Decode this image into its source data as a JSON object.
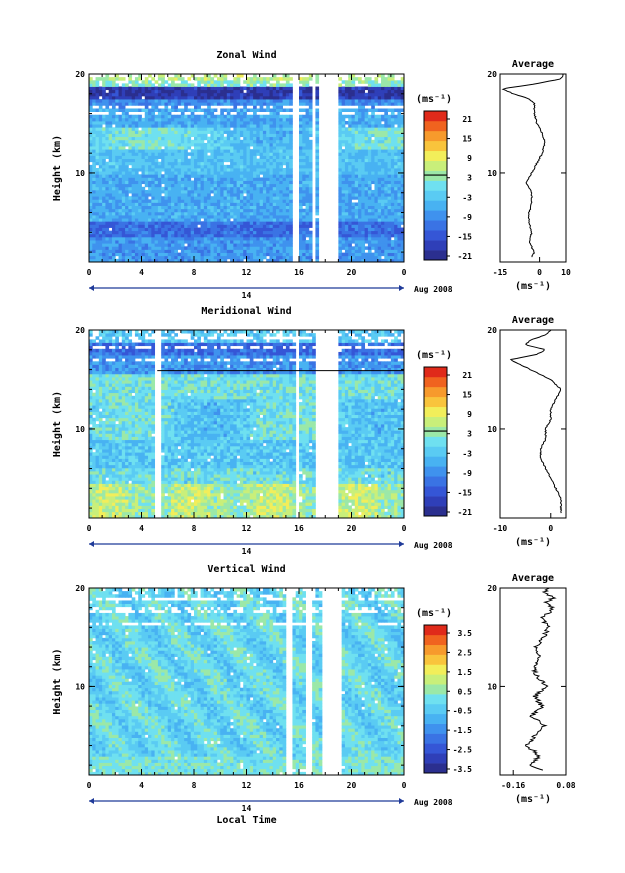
{
  "figure": {
    "xlabel": "Local Time",
    "date_label": "Aug 2008",
    "day_label": "14",
    "avg_title": "Average",
    "unit_label": "(ms⁻¹)",
    "height_label": "Height (km)",
    "colors": [
      "#2b2f8f",
      "#2f3fb8",
      "#3556d6",
      "#3a73e4",
      "#3f92ee",
      "#48b2f2",
      "#5acbf3",
      "#6fe0f0",
      "#9be8a8",
      "#c9ef7a",
      "#f2ee5a",
      "#f9c43c",
      "#f79a2c",
      "#f0631f",
      "#e02a1a"
    ]
  },
  "chart_data": [
    {
      "type": "heatmap",
      "title": "Zonal Wind",
      "ylabel": "Height (km)",
      "xlabel": "",
      "x_range": [
        0,
        24
      ],
      "x_ticks": [
        "0",
        "4",
        "8",
        "12",
        "16",
        "20",
        "0"
      ],
      "y_range": [
        1,
        20
      ],
      "y_ticks": [
        "10",
        "20"
      ],
      "colorbar": {
        "unit": "(ms⁻¹)",
        "ticks": [
          "21",
          "15",
          "9",
          "3",
          "-3",
          "-9",
          "-15",
          "-21"
        ],
        "range": [
          -24,
          24
        ]
      },
      "profile": {
        "title": "Average",
        "xlim": [
          -15,
          10
        ],
        "x_ticks": [
          "-15",
          "0",
          "10"
        ],
        "xlabel": "(ms⁻¹)",
        "heights": [
          1.5,
          2,
          3,
          4,
          5,
          6,
          7,
          8,
          9,
          10,
          11,
          12,
          13,
          14,
          15,
          16,
          17,
          17.5,
          18,
          18.5,
          19,
          19.5,
          20
        ],
        "values": [
          -3,
          -2,
          -4,
          -3,
          -4,
          -4,
          -3,
          -3,
          -5,
          -3,
          -1,
          1,
          2,
          1,
          -1,
          -2,
          -2,
          -4,
          -10,
          -14,
          -2,
          8,
          9
        ]
      },
      "gaps_hours": [
        [
          15.4,
          16.0
        ],
        [
          17.0,
          17.3
        ],
        [
          17.6,
          19.1
        ]
      ]
    },
    {
      "type": "heatmap",
      "title": "Meridional Wind",
      "ylabel": "Height (km)",
      "xlabel": "",
      "x_range": [
        0,
        24
      ],
      "x_ticks": [
        "0",
        "4",
        "8",
        "12",
        "16",
        "20",
        "0"
      ],
      "y_range": [
        1,
        20
      ],
      "y_ticks": [
        "10",
        "20"
      ],
      "colorbar": {
        "unit": "(ms⁻¹)",
        "ticks": [
          "21",
          "15",
          "9",
          "3",
          "-3",
          "-9",
          "-15",
          "-21"
        ],
        "range": [
          -24,
          24
        ]
      },
      "profile": {
        "title": "Average",
        "xlim": [
          -10,
          3
        ],
        "x_ticks": [
          "-10",
          "0"
        ],
        "xlabel": "(ms⁻¹)",
        "heights": [
          1.5,
          2,
          3,
          4,
          5,
          6,
          7,
          8,
          9,
          10,
          11,
          12,
          13,
          14,
          15,
          16,
          17,
          17.5,
          18,
          18.5,
          19,
          19.5,
          20
        ],
        "values": [
          2,
          2,
          2,
          1,
          0,
          -1,
          -2,
          -2,
          -1,
          -1,
          0,
          0,
          1,
          2,
          0,
          -4,
          -8,
          -3,
          -1,
          -5,
          -4,
          -1,
          0
        ]
      },
      "gaps_hours": [
        [
          5.0,
          5.4
        ],
        [
          15.7,
          16.1
        ],
        [
          17.3,
          19.1
        ]
      ]
    },
    {
      "type": "heatmap",
      "title": "Vertical Wind",
      "ylabel": "Height (km)",
      "xlabel": "Local Time",
      "x_range": [
        0,
        24
      ],
      "x_ticks": [
        "0",
        "4",
        "8",
        "12",
        "16",
        "20",
        "0"
      ],
      "y_range": [
        1,
        20
      ],
      "y_ticks": [
        "10",
        "20"
      ],
      "colorbar": {
        "unit": "(ms⁻¹)",
        "ticks": [
          "3.5",
          "2.5",
          "1.5",
          "0.5",
          "-0.5",
          "-1.5",
          "-2.5",
          "-3.5"
        ],
        "range": [
          -4,
          4
        ]
      },
      "profile": {
        "title": "Average",
        "xlim": [
          -0.22,
          0.08
        ],
        "x_ticks": [
          "-0.16",
          "0.08"
        ],
        "xlabel": "(ms⁻¹)",
        "heights": [
          1.5,
          2,
          3,
          4,
          5,
          6,
          7,
          8,
          9,
          10,
          11,
          12,
          13,
          14,
          15,
          16,
          17,
          17.5,
          18,
          18.5,
          19,
          19.5,
          20
        ],
        "values": [
          -0.02,
          -0.08,
          -0.04,
          -0.1,
          -0.06,
          -0.02,
          -0.08,
          -0.03,
          -0.06,
          -0.01,
          -0.05,
          -0.07,
          -0.04,
          -0.06,
          -0.02,
          0.0,
          -0.03,
          0.0,
          0.02,
          -0.01,
          0.02,
          -0.02,
          0.01
        ]
      },
      "gaps_hours": [
        [
          15.1,
          15.6
        ],
        [
          16.4,
          16.9
        ],
        [
          17.8,
          19.2
        ]
      ]
    }
  ]
}
